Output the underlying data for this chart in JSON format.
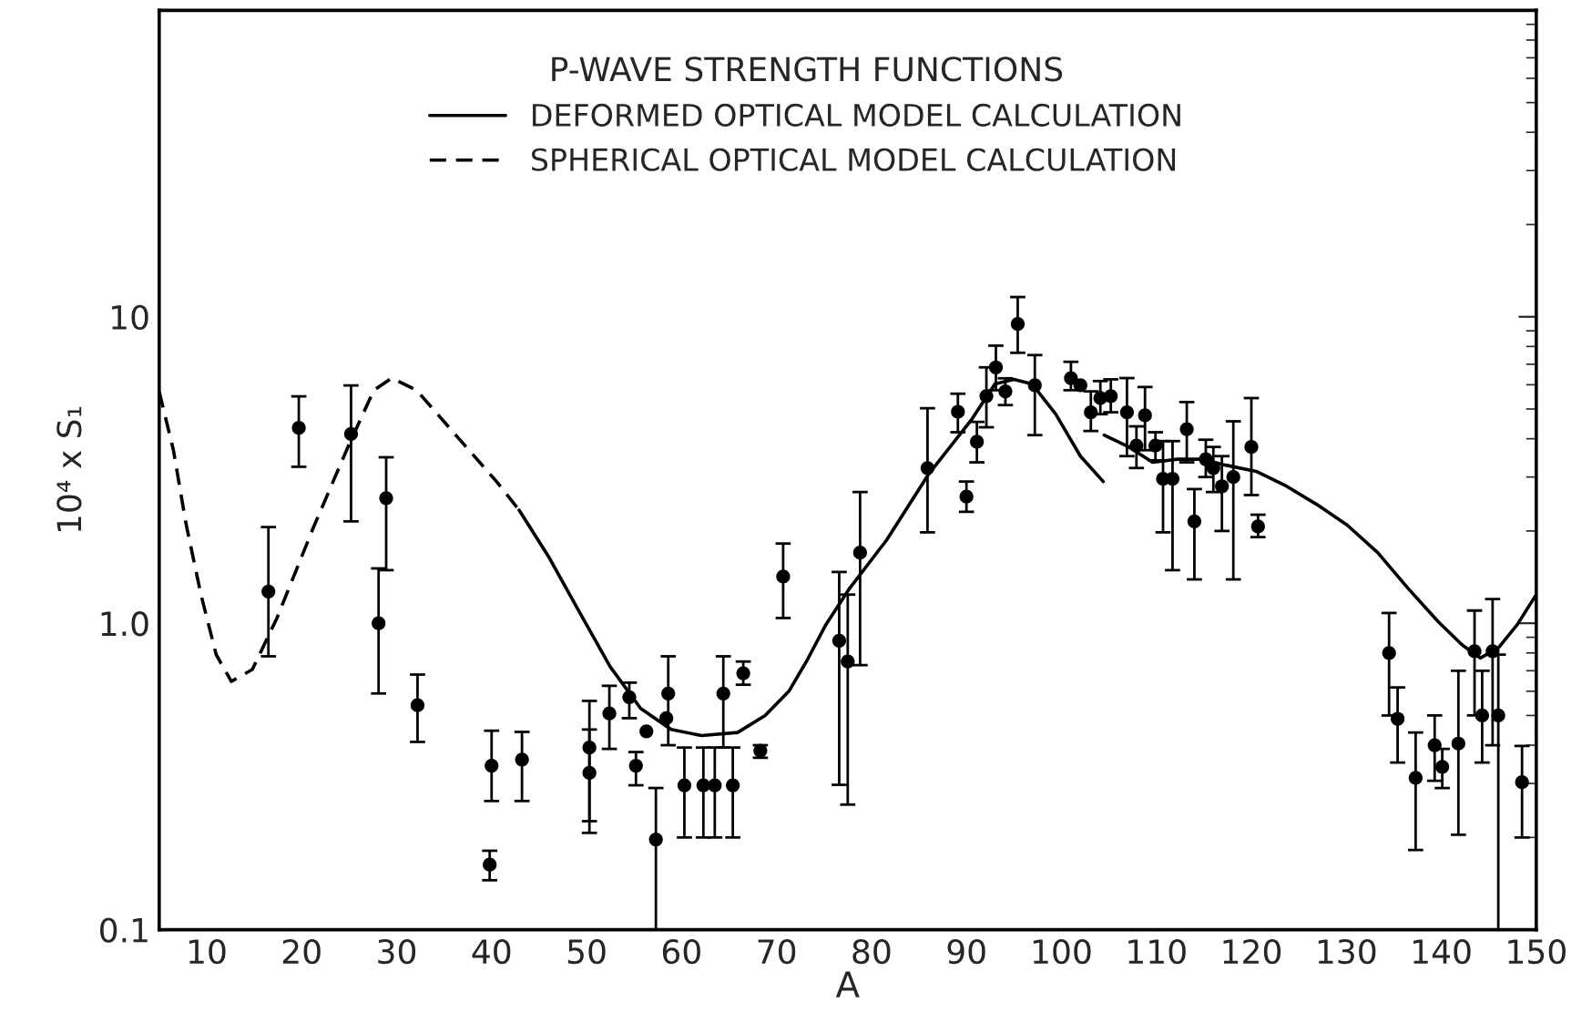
{
  "chart_data": {
    "type": "scatter",
    "legend_title": "P-WAVE STRENGTH FUNCTIONS",
    "xlabel": "A",
    "ylabel": "10⁴ x S₁",
    "log": "y",
    "xlim": [
      5,
      150
    ],
    "ylim": [
      0.1,
      100
    ],
    "xticks": [
      10,
      20,
      30,
      40,
      50,
      60,
      70,
      80,
      90,
      100,
      110,
      120,
      130,
      140,
      150
    ],
    "yticks": [
      0.1,
      {
        "value": 1,
        "label": "1.0"
      },
      10
    ],
    "grid": false,
    "legend": "top",
    "series": [
      {
        "type": "line",
        "name": "DEFORMED OPTICAL MODEL CALCULATION",
        "color": "#000000",
        "line_style": "solid",
        "marker": "none",
        "x": [
          42.9,
          46.1,
          49.3,
          52.5,
          55.7,
          58.9,
          62.1,
          65.9,
          68.8,
          71.3,
          73.2,
          75.2,
          77.7,
          81.6,
          86.0,
          90.5,
          93.0,
          95.0,
          96.9,
          99.4,
          102.0,
          104.4,
          104.45,
          104.5,
          107.1,
          109.6,
          112.2,
          114.8,
          117.3,
          120.5,
          123.7,
          126.9,
          130.1,
          133.3,
          136.5,
          139.7,
          142.2,
          144.1,
          146.0,
          148.0,
          150.0
        ],
        "values": [
          2.34,
          1.63,
          1.08,
          0.72,
          0.527,
          0.45,
          0.43,
          0.44,
          0.5,
          0.6,
          0.755,
          0.99,
          1.3,
          1.87,
          3.06,
          4.6,
          6.04,
          6.25,
          6.04,
          4.81,
          3.51,
          2.9,
          null,
          4.11,
          3.76,
          3.35,
          3.43,
          3.43,
          3.28,
          3.13,
          2.8,
          2.44,
          2.09,
          1.7,
          1.3,
          1.01,
          0.85,
          0.77,
          0.83,
          0.99,
          1.24
        ]
      },
      {
        "type": "line",
        "name": "SPHERICAL OPTICAL MODEL CALCULATION",
        "color": "#000000",
        "line_style": "dashed",
        "marker": "none",
        "x": [
          5.0,
          6.5,
          7.8,
          9.4,
          11.0,
          12.6,
          14.8,
          17.4,
          21.2,
          25.0,
          27.6,
          29.5,
          32.1,
          36.5,
          40.4,
          42.9
        ],
        "values": [
          5.7,
          3.67,
          2.13,
          1.24,
          0.79,
          0.646,
          0.706,
          1.04,
          2.04,
          3.84,
          5.76,
          6.31,
          5.76,
          4.02,
          2.93,
          2.34
        ]
      },
      {
        "color": "#000000",
        "marker": "circle",
        "x": [
          16.5,
          19.7,
          25.2,
          28.9,
          28.1,
          32.2,
          40.0,
          39.8,
          43.2,
          50.3,
          50.3,
          52.4,
          54.5,
          55.2,
          56.3,
          57.3,
          58.6,
          58.4,
          60.3,
          62.3,
          63.5,
          64.4,
          65.4,
          66.5,
          68.3,
          70.7,
          76.6,
          77.5,
          78.8,
          85.9,
          89.1,
          90.0,
          91.1,
          92.1,
          93.1,
          94.1,
          95.4,
          97.2,
          101.0,
          102.0,
          103.1,
          104.1,
          105.2,
          106.9,
          107.9,
          108.8,
          109.9,
          110.7,
          111.7,
          113.2,
          114.0,
          115.2,
          116.0,
          116.9,
          118.1,
          120.0,
          120.7,
          134.5,
          135.4,
          137.3,
          139.3,
          140.1,
          141.8,
          143.5,
          144.3,
          145.4,
          146.0,
          148.5
        ],
        "values": [
          1.27,
          4.34,
          4.15,
          2.56,
          1.0,
          0.54,
          0.343,
          0.163,
          0.359,
          0.393,
          0.325,
          0.508,
          0.574,
          0.343,
          0.444,
          0.197,
          0.59,
          0.49,
          0.296,
          0.296,
          0.296,
          0.59,
          0.296,
          0.687,
          0.384,
          1.42,
          0.877,
          0.75,
          1.7,
          3.21,
          4.9,
          2.59,
          3.91,
          5.51,
          6.84,
          5.71,
          9.47,
          5.98,
          6.31,
          5.98,
          4.88,
          5.43,
          5.51,
          4.88,
          3.8,
          4.77,
          3.8,
          2.96,
          2.96,
          4.3,
          2.15,
          3.43,
          3.21,
          2.8,
          3.0,
          3.76,
          2.07,
          0.8,
          0.488,
          0.313,
          0.4,
          0.34,
          0.405,
          0.81,
          0.5,
          0.81,
          0.5,
          0.303
        ],
        "errors": [
          [
            0.78,
            2.06
          ],
          [
            3.24,
            5.5
          ],
          [
            2.15,
            5.97
          ],
          [
            1.49,
            3.48
          ],
          [
            0.59,
            1.51
          ],
          [
            0.41,
            0.68
          ],
          [
            0.263,
            0.446
          ],
          [
            0.145,
            0.181
          ],
          [
            0.263,
            0.442
          ],
          [
            0.207,
            0.558
          ],
          [
            0.226,
            0.45
          ],
          [
            0.389,
            0.625
          ],
          [
            0.49,
            0.64
          ],
          [
            0.296,
            0.38
          ],
          null,
          [
            0.1,
            0.29
          ],
          [
            0.4,
            0.78
          ],
          null,
          [
            0.2,
            0.393
          ],
          [
            0.2,
            0.393
          ],
          [
            0.2,
            0.393
          ],
          [
            0.393,
            0.78
          ],
          [
            0.2,
            0.393
          ],
          [
            0.63,
            0.75
          ],
          [
            0.364,
            0.4
          ],
          [
            1.04,
            1.82
          ],
          [
            0.297,
            1.47
          ],
          [
            0.256,
            1.24
          ],
          [
            0.73,
            2.68
          ],
          [
            1.98,
            5.03
          ],
          [
            4.2,
            5.61
          ],
          [
            2.31,
            2.9
          ],
          [
            3.35,
            4.54
          ],
          [
            4.36,
            6.84
          ],
          [
            5.76,
            8.05
          ],
          [
            5.15,
            6.3
          ],
          [
            7.63,
            11.6
          ],
          [
            4.11,
            7.5
          ],
          [
            5.76,
            7.13
          ],
          null,
          [
            4.24,
            5.71
          ],
          [
            4.81,
            6.17
          ],
          [
            4.88,
            6.25
          ],
          [
            3.51,
            6.31
          ],
          [
            3.21,
            4.39
          ],
          [
            3.67,
            5.9
          ],
          [
            3.4,
            4.2
          ],
          [
            1.98,
            3.93
          ],
          [
            1.49,
            3.93
          ],
          [
            3.35,
            5.27
          ],
          [
            1.39,
            2.74
          ],
          [
            3.0,
            3.97
          ],
          [
            2.68,
            3.76
          ],
          [
            2.0,
            3.51
          ],
          [
            1.39,
            4.56
          ],
          [
            2.62,
            5.43
          ],
          [
            1.91,
            2.26
          ],
          [
            0.5,
            1.08
          ],
          [
            0.351,
            0.617
          ],
          [
            0.182,
            0.44
          ],
          [
            0.306,
            0.5
          ],
          [
            0.29,
            0.389
          ],
          [
            0.204,
            0.7
          ],
          [
            0.5,
            1.1
          ],
          [
            0.351,
            0.7
          ],
          [
            0.4,
            1.2
          ],
          [
            0.1,
            0.79
          ],
          [
            0.2,
            0.398
          ]
        ]
      }
    ]
  }
}
